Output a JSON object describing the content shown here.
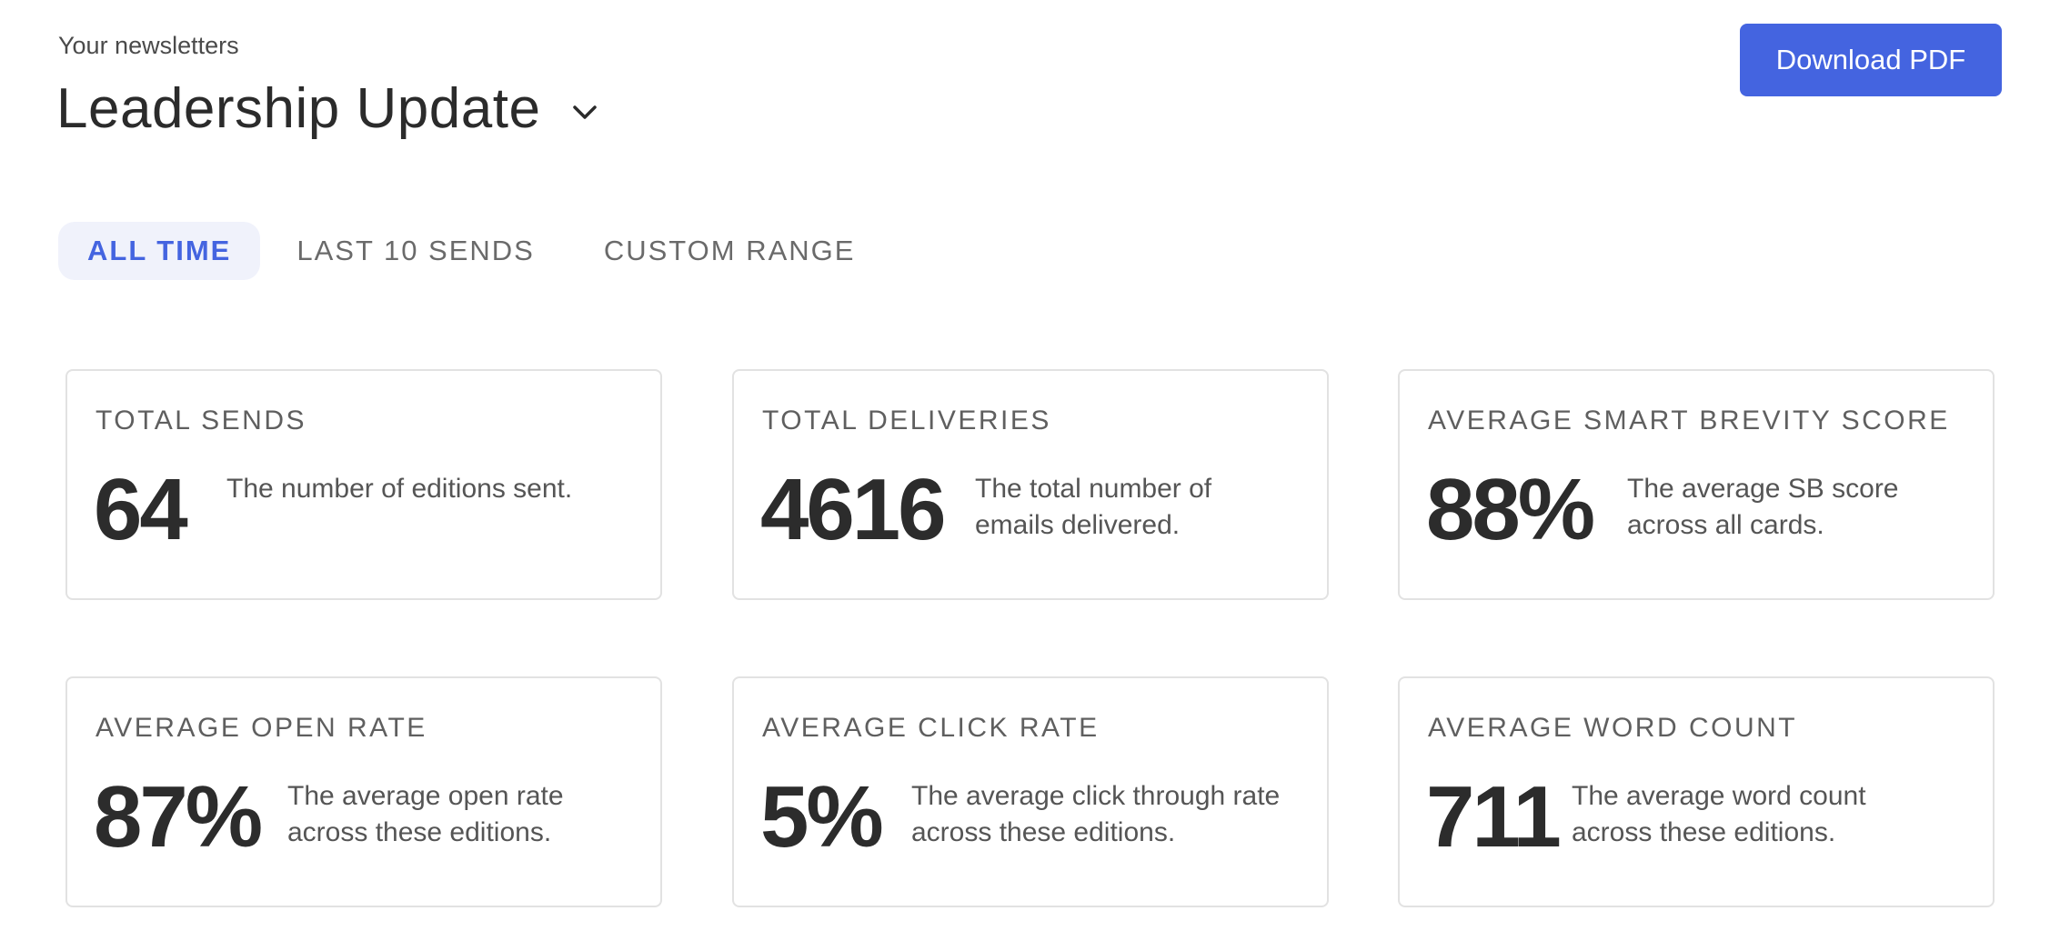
{
  "header": {
    "label": "Your newsletters",
    "title": "Leadership Update",
    "download_label": "Download PDF"
  },
  "tabs": [
    {
      "label": "ALL TIME",
      "active": true
    },
    {
      "label": "LAST 10 SENDS",
      "active": false
    },
    {
      "label": "CUSTOM RANGE",
      "active": false
    }
  ],
  "cards": [
    {
      "title": "TOTAL SENDS",
      "value": "64",
      "description": "The number of editions sent."
    },
    {
      "title": "TOTAL DELIVERIES",
      "value": "4616",
      "description": "The total number of emails delivered."
    },
    {
      "title": "AVERAGE SMART BREVITY SCORE",
      "value": "88%",
      "description": "The average SB score across all cards."
    },
    {
      "title": "AVERAGE OPEN RATE",
      "value": "87%",
      "description": "The average open rate across these editions."
    },
    {
      "title": "AVERAGE CLICK RATE",
      "value": "5%",
      "description": "The average click through rate across these editions."
    },
    {
      "title": "AVERAGE WORD COUNT",
      "value": "711",
      "description": "The average word count across these editions."
    }
  ],
  "colors": {
    "accent": "#4464e0",
    "active_tab_bg": "#f0f2fb",
    "card_border": "#e2e2e2"
  },
  "icons": {
    "title_dropdown": "chevron-down-icon"
  }
}
